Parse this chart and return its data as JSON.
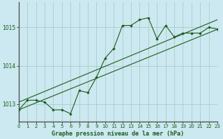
{
  "title": "Graphe pression niveau de la mer (hPa)",
  "background_color": "#cce8f0",
  "grid_color": "#aacccc",
  "line_color": "#1a5c1a",
  "marker_color": "#1a5c1a",
  "xlim": [
    0,
    23
  ],
  "ylim": [
    1012.55,
    1015.65
  ],
  "yticks": [
    1013,
    1014,
    1015
  ],
  "xticks": [
    0,
    1,
    2,
    3,
    4,
    5,
    6,
    7,
    8,
    9,
    10,
    11,
    12,
    13,
    14,
    15,
    16,
    17,
    18,
    19,
    20,
    21,
    22,
    23
  ],
  "line1_x": [
    0,
    1,
    2,
    3,
    4,
    5,
    6,
    7,
    8,
    9,
    10,
    11,
    12,
    13,
    14,
    15,
    16,
    17,
    18,
    19,
    20,
    21,
    22,
    23
  ],
  "line1_y": [
    1012.85,
    1013.1,
    1013.1,
    1013.05,
    1012.85,
    1012.85,
    1012.75,
    1013.35,
    1013.3,
    1013.7,
    1014.2,
    1014.45,
    1015.05,
    1015.05,
    1015.2,
    1015.25,
    1014.7,
    1015.05,
    1014.75,
    1014.85,
    1014.85,
    1014.85,
    1015.0,
    1014.95
  ],
  "line2_x": [
    0,
    23
  ],
  "line2_y": [
    1012.85,
    1014.95
  ],
  "line3_x": [
    0,
    23
  ],
  "line3_y": [
    1013.05,
    1015.2
  ]
}
